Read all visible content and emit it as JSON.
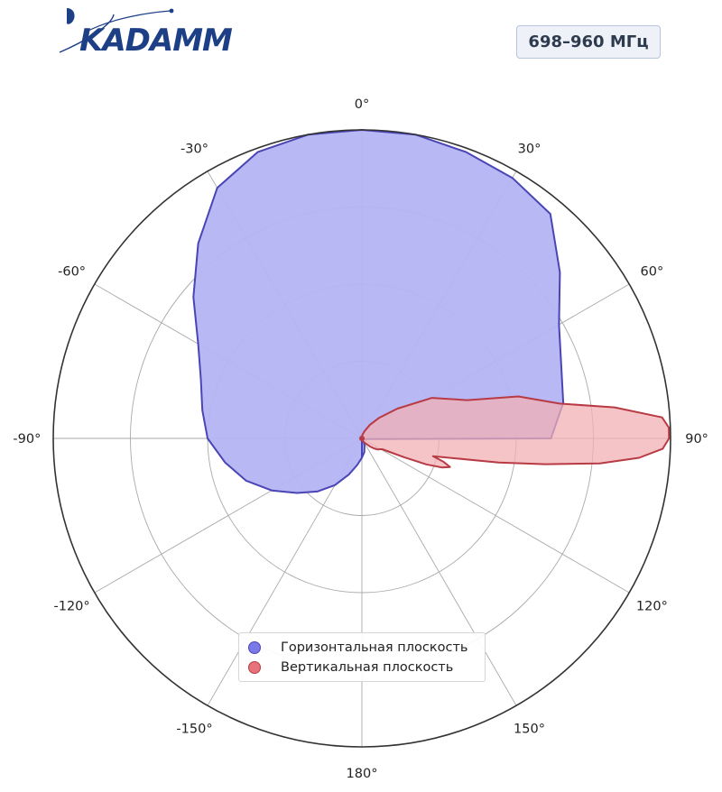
{
  "header": {
    "logo_text": "KADAMM",
    "frequency_badge": "698–960 МГц"
  },
  "colors": {
    "horizontal_fill": "#b4b4f3",
    "horizontal_line": "#4a45b5",
    "vertical_fill": "#f2b0b4",
    "vertical_line": "#b83a44",
    "grid": "#aaaaaa",
    "outer_ring": "#333333",
    "logo": "#1d3f86"
  },
  "chart_data": {
    "type": "polar",
    "title": "",
    "theta_zero": "top",
    "theta_direction": "clockwise",
    "angle_ticks": [
      "0°",
      "30°",
      "60°",
      "90°",
      "120°",
      "150°",
      "180°",
      "-150°",
      "-120°",
      "-90°",
      "-60°",
      "-30°"
    ],
    "angle_tick_values": [
      0,
      30,
      60,
      90,
      120,
      150,
      180,
      -150,
      -120,
      -90,
      -60,
      -30
    ],
    "rlim": [
      0,
      4
    ],
    "rgrid": [
      1,
      2,
      3,
      4
    ],
    "legend_placement": "bottom-center",
    "series": [
      {
        "name": "Горизонтальная плоскость",
        "theta": [
          -180,
          -170,
          -160,
          -150,
          -140,
          -130,
          -120,
          -110,
          -100,
          -90,
          -80,
          -70,
          -60,
          -50,
          -40,
          -30,
          -20,
          -10,
          0,
          10,
          20,
          30,
          40,
          50,
          60,
          70,
          80,
          90,
          100,
          110,
          120,
          130,
          140,
          150,
          160,
          170,
          180
        ],
        "r": [
          0.25,
          0.35,
          0.5,
          0.7,
          0.9,
          1.1,
          1.35,
          1.6,
          1.8,
          2.0,
          2.1,
          2.22,
          2.45,
          2.85,
          3.3,
          3.75,
          3.95,
          4.0,
          4.0,
          4.0,
          3.95,
          3.9,
          3.8,
          3.35,
          2.95,
          2.75,
          2.65,
          2.45,
          0.05,
          0.03,
          0.02,
          0.02,
          0.03,
          0.05,
          0.1,
          0.18,
          0.25
        ]
      },
      {
        "name": "Вертикальная плоскость",
        "theta": [
          0,
          10,
          20,
          30,
          40,
          50,
          60,
          70,
          75,
          80,
          83,
          86,
          88,
          90,
          92,
          94,
          96,
          98,
          100,
          102,
          104,
          106,
          108,
          110,
          112,
          114,
          116,
          118,
          120,
          125,
          130,
          135,
          140,
          150,
          160,
          170,
          180
        ],
        "r": [
          0.02,
          0.05,
          0.1,
          0.2,
          0.35,
          0.6,
          1.05,
          1.45,
          2.1,
          2.6,
          3.3,
          3.9,
          3.98,
          3.98,
          3.9,
          3.6,
          3.1,
          2.4,
          1.8,
          1.25,
          0.95,
          1.1,
          1.2,
          1.1,
          0.9,
          0.6,
          0.4,
          0.3,
          0.28,
          0.25,
          0.2,
          0.15,
          0.1,
          0.06,
          0.04,
          0.03,
          0.02
        ]
      }
    ]
  }
}
